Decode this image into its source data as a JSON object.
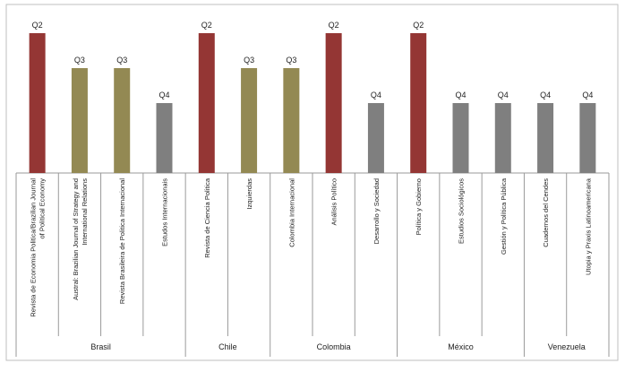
{
  "chart_data": {
    "type": "bar",
    "categories": [
      "Revista de Economia Politica/Brazilian Journal of Political Economy",
      "Austral: Brazilian Journal of Strategy and International Relations",
      "Revista Brasileira de Politica Internacional",
      "Estudos Internacionais",
      "Revista de Ciencia Politica",
      "Izquierdas",
      "Colombia Internacional",
      "Análisis Político",
      "Desarrollo y Sociedad",
      "Política y Gobierno",
      "Estudios Sociológicos",
      "Gestión y Política Pública",
      "Cuadernos del Cendes",
      "Utopia y Praxis Latinoamericana"
    ],
    "label_lines": [
      [
        "Revista de Economia Politica/Brazilian Journal",
        "of Political Economy"
      ],
      [
        "Austral: Brazilian Journal of Strategy and",
        "International Relations"
      ],
      [
        "Revista Brasileira de Politica Internacional"
      ],
      [
        "Estudos Internacionais"
      ],
      [
        "Revista de Ciencia Politica"
      ],
      [
        "Izquierdas"
      ],
      [
        "Colombia Internacional"
      ],
      [
        "Análisis Político"
      ],
      [
        "Desarrollo y Sociedad"
      ],
      [
        "Política y Gobierno"
      ],
      [
        "Estudios Sociológicos"
      ],
      [
        "Gestión y Política Pública"
      ],
      [
        "Cuadernos del Cendes"
      ],
      [
        "Utopia y Praxis Latinoamericana"
      ]
    ],
    "quartiles": [
      "Q2",
      "Q3",
      "Q3",
      "Q4",
      "Q2",
      "Q3",
      "Q3",
      "Q2",
      "Q4",
      "Q2",
      "Q4",
      "Q4",
      "Q4",
      "Q4"
    ],
    "values": [
      4,
      3,
      3,
      2,
      4,
      3,
      3,
      4,
      2,
      4,
      2,
      2,
      2,
      2
    ],
    "ylim": [
      0,
      4
    ],
    "groups": [
      {
        "label": "Brasil",
        "start": 0,
        "end": 3
      },
      {
        "label": "Chile",
        "start": 4,
        "end": 5
      },
      {
        "label": "Colombia",
        "start": 6,
        "end": 8
      },
      {
        "label": "México",
        "start": 9,
        "end": 11
      },
      {
        "label": "Venezuela",
        "start": 12,
        "end": 13
      }
    ],
    "colors": {
      "Q2": "#943634",
      "Q3": "#938953",
      "Q4": "#7f7f7f"
    },
    "grid": false,
    "legend": "none"
  }
}
